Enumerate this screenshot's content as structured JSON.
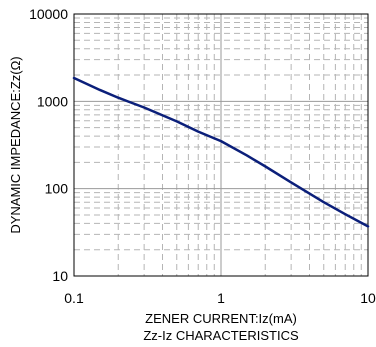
{
  "chart_data": {
    "type": "line",
    "title": "Zz-Iz CHARACTERISTICS",
    "xlabel": "ZENER CURRENT:Iz(mA)",
    "ylabel": "DYNAMIC IMPEDANCE:Zz(Ω)",
    "x_scale": "log",
    "y_scale": "log",
    "xlim": [
      0.1,
      10
    ],
    "ylim": [
      10,
      10000
    ],
    "x_ticks": [
      "0.1",
      "1",
      "10"
    ],
    "y_ticks": [
      "10",
      "100",
      "1000",
      "10000"
    ],
    "grid": true,
    "line_color": "#0b1f7a",
    "series": [
      {
        "name": "",
        "x": [
          0.1,
          0.15,
          0.2,
          0.3,
          0.5,
          0.7,
          1,
          1.5,
          2,
          3,
          5,
          7,
          10
        ],
        "y": [
          1850,
          1350,
          1100,
          850,
          590,
          450,
          350,
          240,
          180,
          118,
          70,
          51,
          37
        ]
      }
    ]
  }
}
